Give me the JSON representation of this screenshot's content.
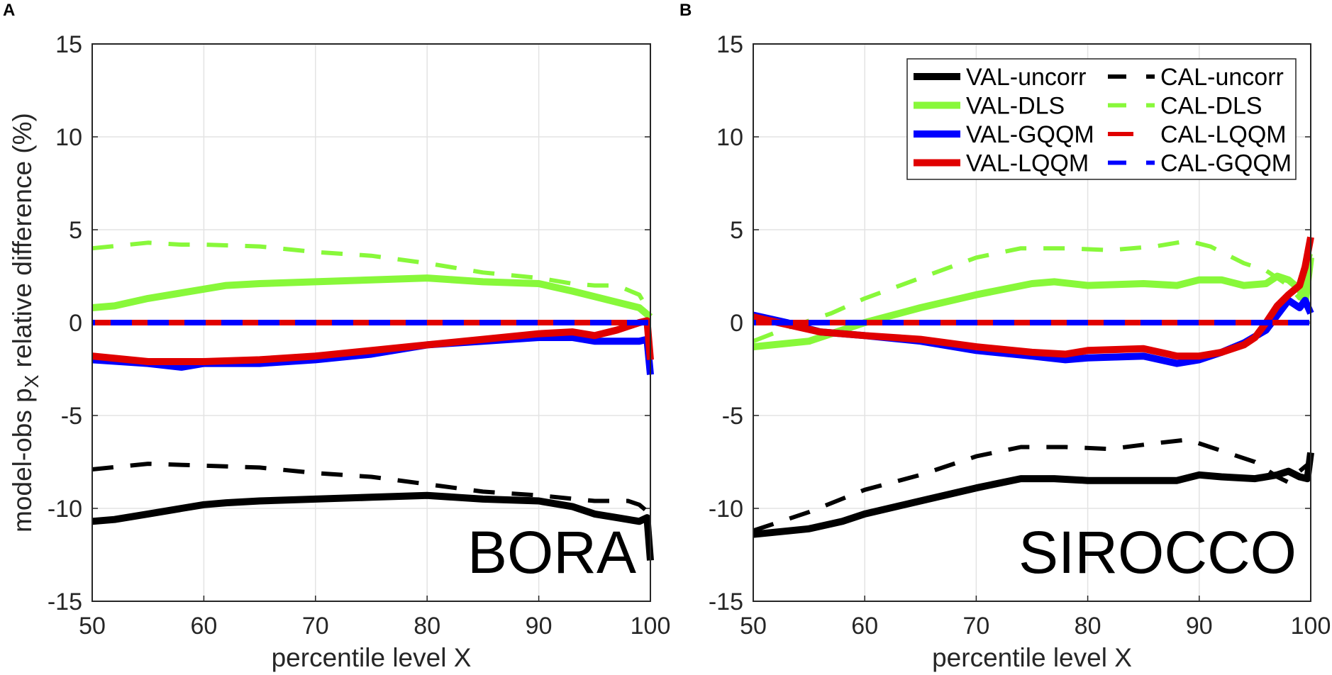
{
  "chart_data": [
    {
      "type": "line",
      "panel_label": "A",
      "annotation": "BORA",
      "xlabel": "percentile level X",
      "ylabel": {
        "main": "model-obs p",
        "sub": "X",
        "rest": " relative difference (%)"
      },
      "xlim": [
        50,
        100
      ],
      "ylim": [
        -15,
        15
      ],
      "xticks": [
        "50",
        "60",
        "70",
        "80",
        "90",
        "100"
      ],
      "yticks": [
        "-15",
        "-10",
        "-5",
        "0",
        "5",
        "10",
        "15"
      ],
      "grid": true,
      "reference_line": 0,
      "series": [
        {
          "name": "VAL-uncorr",
          "style": "solid",
          "color": "#000000",
          "x": [
            50,
            52,
            55,
            58,
            60,
            62,
            65,
            70,
            75,
            80,
            85,
            90,
            93,
            95,
            97,
            99,
            99.7,
            100
          ],
          "y": [
            -10.7,
            -10.6,
            -10.3,
            -10.0,
            -9.8,
            -9.7,
            -9.6,
            -9.5,
            -9.4,
            -9.3,
            -9.5,
            -9.6,
            -9.9,
            -10.3,
            -10.5,
            -10.7,
            -10.5,
            -12.8
          ]
        },
        {
          "name": "CAL-uncorr",
          "style": "dashed",
          "color": "#000000",
          "x": [
            50,
            55,
            60,
            65,
            70,
            75,
            80,
            85,
            90,
            95,
            98,
            99,
            100
          ],
          "y": [
            -7.9,
            -7.6,
            -7.7,
            -7.8,
            -8.1,
            -8.3,
            -8.7,
            -9.1,
            -9.3,
            -9.6,
            -9.6,
            -9.8,
            -10.3
          ]
        },
        {
          "name": "VAL-DLS",
          "style": "solid",
          "color": "#88f83a",
          "x": [
            50,
            52,
            55,
            58,
            60,
            62,
            65,
            70,
            75,
            80,
            85,
            90,
            93,
            95,
            97,
            99,
            100
          ],
          "y": [
            0.8,
            0.9,
            1.3,
            1.6,
            1.8,
            2.0,
            2.1,
            2.2,
            2.3,
            2.4,
            2.2,
            2.1,
            1.7,
            1.4,
            1.1,
            0.8,
            0.3
          ]
        },
        {
          "name": "CAL-DLS",
          "style": "dashed",
          "color": "#88f83a",
          "x": [
            50,
            55,
            58,
            60,
            65,
            70,
            75,
            80,
            85,
            90,
            93,
            95,
            97,
            99,
            100
          ],
          "y": [
            4.0,
            4.3,
            4.2,
            4.2,
            4.1,
            3.8,
            3.6,
            3.2,
            2.7,
            2.4,
            2.1,
            2.0,
            2.0,
            1.5,
            0.5
          ]
        },
        {
          "name": "VAL-GQQM",
          "style": "solid",
          "color": "#0000ff",
          "x": [
            50,
            55,
            58,
            60,
            65,
            70,
            75,
            80,
            85,
            90,
            93,
            95,
            97,
            99,
            99.7,
            100
          ],
          "y": [
            -2.0,
            -2.2,
            -2.4,
            -2.2,
            -2.2,
            -2.0,
            -1.7,
            -1.2,
            -1.0,
            -0.8,
            -0.8,
            -1.0,
            -1.0,
            -1.0,
            -0.9,
            -2.8
          ]
        },
        {
          "name": "VAL-LQQM",
          "style": "solid",
          "color": "#e00000",
          "x": [
            50,
            55,
            60,
            65,
            70,
            75,
            80,
            85,
            90,
            93,
            95,
            97,
            99,
            99.7,
            100
          ],
          "y": [
            -1.8,
            -2.1,
            -2.1,
            -2.0,
            -1.8,
            -1.5,
            -1.2,
            -0.9,
            -0.6,
            -0.5,
            -0.7,
            -0.4,
            0.0,
            0.1,
            -2.0
          ]
        },
        {
          "name": "CAL-LQQM",
          "style": "dashed",
          "color": "#e00000",
          "x": [
            50,
            100
          ],
          "y": [
            0,
            0
          ]
        },
        {
          "name": "CAL-GQQM",
          "style": "dashed",
          "color": "#0000ff",
          "x": [
            50,
            100
          ],
          "y": [
            0,
            0
          ]
        }
      ]
    },
    {
      "type": "line",
      "panel_label": "B",
      "annotation": "SIROCCO",
      "xlabel": "percentile level X",
      "xlim": [
        50,
        100
      ],
      "ylim": [
        -15,
        15
      ],
      "xticks": [
        "50",
        "60",
        "70",
        "80",
        "90",
        "100"
      ],
      "yticks": [
        "-15",
        "-10",
        "-5",
        "0",
        "5",
        "10",
        "15"
      ],
      "grid": true,
      "reference_line": 0,
      "legend": {
        "placement": "top-right",
        "entries": [
          "VAL-uncorr",
          "CAL-uncorr",
          "VAL-DLS",
          "CAL-DLS",
          "VAL-GQQM",
          "CAL-LQQM",
          "VAL-LQQM",
          "CAL-GQQM"
        ]
      },
      "series": [
        {
          "name": "VAL-uncorr",
          "style": "solid",
          "color": "#000000",
          "x": [
            50,
            55,
            58,
            60,
            65,
            70,
            74,
            77,
            80,
            85,
            88,
            90,
            92,
            95,
            97,
            98,
            99,
            99.7,
            100
          ],
          "y": [
            -11.4,
            -11.1,
            -10.7,
            -10.3,
            -9.6,
            -8.9,
            -8.4,
            -8.4,
            -8.5,
            -8.5,
            -8.5,
            -8.2,
            -8.3,
            -8.4,
            -8.2,
            -8.0,
            -8.3,
            -8.4,
            -7.0
          ]
        },
        {
          "name": "CAL-uncorr",
          "style": "dashed",
          "color": "#000000",
          "x": [
            50,
            55,
            60,
            65,
            70,
            74,
            78,
            82,
            86,
            89,
            92,
            95,
            97,
            98,
            99,
            100
          ],
          "y": [
            -11.2,
            -10.2,
            -9.0,
            -8.2,
            -7.2,
            -6.7,
            -6.7,
            -6.8,
            -6.5,
            -6.3,
            -6.9,
            -7.5,
            -8.3,
            -8.6,
            -8.0,
            -7.5
          ]
        },
        {
          "name": "VAL-DLS",
          "style": "solid",
          "color": "#88f83a",
          "x": [
            50,
            55,
            60,
            65,
            70,
            75,
            77,
            80,
            85,
            88,
            90,
            92,
            94,
            96,
            97,
            98,
            99,
            99.5,
            100
          ],
          "y": [
            -1.3,
            -1.0,
            0.0,
            0.8,
            1.5,
            2.1,
            2.2,
            2.0,
            2.1,
            2.0,
            2.3,
            2.3,
            2.0,
            2.1,
            2.5,
            2.3,
            1.8,
            1.0,
            3.5
          ]
        },
        {
          "name": "CAL-DLS",
          "style": "dashed",
          "color": "#88f83a",
          "x": [
            50,
            53,
            57,
            60,
            65,
            70,
            74,
            78,
            82,
            86,
            89,
            91,
            94,
            96,
            98,
            99,
            100
          ],
          "y": [
            -1.0,
            -0.3,
            0.5,
            1.3,
            2.4,
            3.5,
            4.0,
            4.0,
            3.9,
            4.1,
            4.4,
            4.1,
            3.2,
            2.8,
            2.0,
            1.3,
            3.7
          ]
        },
        {
          "name": "VAL-GQQM",
          "style": "solid",
          "color": "#0000ff",
          "x": [
            50,
            53,
            56,
            60,
            65,
            70,
            75,
            78,
            80,
            85,
            88,
            90,
            92,
            94,
            96,
            97,
            98,
            99,
            99.5,
            100
          ],
          "y": [
            0.4,
            0.0,
            -0.5,
            -0.7,
            -1.0,
            -1.5,
            -1.8,
            -2.0,
            -1.9,
            -1.8,
            -2.2,
            -2.0,
            -1.6,
            -1.1,
            -0.4,
            0.4,
            1.2,
            0.8,
            1.2,
            0.5
          ]
        },
        {
          "name": "VAL-LQQM",
          "style": "solid",
          "color": "#e00000",
          "x": [
            50,
            53,
            56,
            60,
            65,
            70,
            75,
            78,
            80,
            85,
            88,
            90,
            92,
            94,
            95,
            96,
            97,
            98,
            99,
            99.5,
            100
          ],
          "y": [
            0.3,
            -0.1,
            -0.5,
            -0.7,
            -0.9,
            -1.3,
            -1.6,
            -1.7,
            -1.5,
            -1.4,
            -1.8,
            -1.8,
            -1.6,
            -1.2,
            -0.8,
            0.0,
            0.9,
            1.5,
            2.0,
            3.0,
            4.6
          ]
        },
        {
          "name": "CAL-LQQM",
          "style": "dashed",
          "color": "#e00000",
          "x": [
            50,
            99
          ],
          "y": [
            0,
            0
          ]
        },
        {
          "name": "CAL-GQQM",
          "style": "dashed",
          "color": "#0000ff",
          "x": [
            50,
            100
          ],
          "y": [
            0,
            0
          ]
        }
      ]
    }
  ]
}
